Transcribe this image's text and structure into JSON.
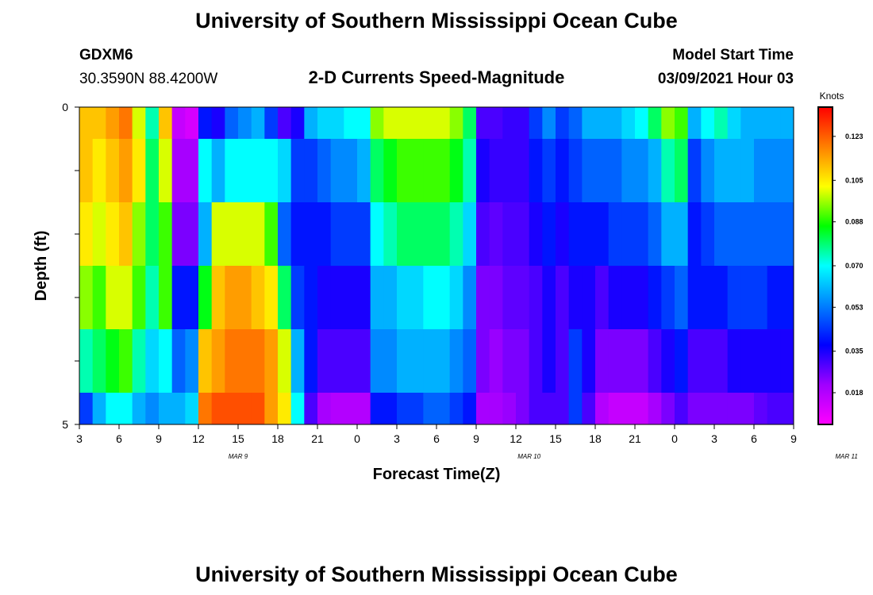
{
  "header": {
    "title": "University of Southern Mississippi Ocean Cube",
    "station": "GDXM6",
    "coords": "30.3590N 88.4200W",
    "subtitle": "2-D Currents Speed-Magnitude",
    "model_start_label": "Model Start Time",
    "model_start_value": "03/09/2021 Hour 03",
    "footer_title": "University of Southern Mississippi Ocean Cube"
  },
  "colors": {
    "scale": [
      "#ff00ff",
      "#a000ff",
      "#0000ff",
      "#0080ff",
      "#00ffff",
      "#00ff00",
      "#ffff00",
      "#ff8000",
      "#ff0000"
    ]
  },
  "chart_data": {
    "type": "heatmap",
    "xlabel": "Forecast Time(Z)",
    "ylabel": "Depth (ft)",
    "colorbar_label": "Knots",
    "colorbar_ticks": [
      "0.018",
      "0.035",
      "0.053",
      "0.070",
      "0.088",
      "0.105",
      "0.123"
    ],
    "value_range": [
      0.005,
      0.135
    ],
    "y_ticks": [
      "0",
      "5"
    ],
    "ylim": [
      0,
      5
    ],
    "x_ticks": [
      "3",
      "6",
      "9",
      "12",
      "15",
      "18",
      "21",
      "0",
      "3",
      "6",
      "9",
      "12",
      "15",
      "18",
      "21",
      "0",
      "3",
      "6",
      "9"
    ],
    "day_labels": [
      {
        "text": "MAR 9",
        "at_hour": 12
      },
      {
        "text": "MAR 10",
        "at_hour": 34
      },
      {
        "text": "MAR 11",
        "at_hour": 58
      }
    ],
    "hours_range": [
      3,
      57
    ],
    "depth_levels": [
      "0-0.5",
      "0.5-1.5",
      "1.5-2.5",
      "2.5-3.5",
      "3.5-4.5",
      "4.5-5"
    ],
    "profile": [
      {
        "hour": 3,
        "values": [
          0.11,
          0.11,
          0.105,
          0.095,
          0.075,
          0.045
        ]
      },
      {
        "hour": 4,
        "values": [
          0.11,
          0.105,
          0.1,
          0.09,
          0.08,
          0.06
        ]
      },
      {
        "hour": 5,
        "values": [
          0.115,
          0.11,
          0.105,
          0.1,
          0.085,
          0.07
        ]
      },
      {
        "hour": 6,
        "values": [
          0.12,
          0.115,
          0.11,
          0.1,
          0.09,
          0.07
        ]
      },
      {
        "hour": 7,
        "values": [
          0.1,
          0.105,
          0.095,
          0.09,
          0.075,
          0.06
        ]
      },
      {
        "hour": 8,
        "values": [
          0.075,
          0.08,
          0.08,
          0.075,
          0.065,
          0.055
        ]
      },
      {
        "hour": 9,
        "values": [
          0.11,
          0.1,
          0.09,
          0.09,
          0.07,
          0.06
        ]
      },
      {
        "hour": 10,
        "values": [
          0.015,
          0.02,
          0.025,
          0.04,
          0.05,
          0.06
        ]
      },
      {
        "hour": 11,
        "values": [
          0.012,
          0.02,
          0.025,
          0.04,
          0.055,
          0.065
        ]
      },
      {
        "hour": 12,
        "values": [
          0.04,
          0.07,
          0.06,
          0.085,
          0.11,
          0.12
        ]
      },
      {
        "hour": 13,
        "values": [
          0.035,
          0.06,
          0.1,
          0.11,
          0.115,
          0.125
        ]
      },
      {
        "hour": 14,
        "values": [
          0.05,
          0.07,
          0.1,
          0.115,
          0.12,
          0.125
        ]
      },
      {
        "hour": 15,
        "values": [
          0.055,
          0.07,
          0.1,
          0.115,
          0.12,
          0.125
        ]
      },
      {
        "hour": 16,
        "values": [
          0.06,
          0.07,
          0.1,
          0.11,
          0.12,
          0.125
        ]
      },
      {
        "hour": 17,
        "values": [
          0.045,
          0.07,
          0.09,
          0.105,
          0.115,
          0.115
        ]
      },
      {
        "hour": 18,
        "values": [
          0.03,
          0.065,
          0.05,
          0.08,
          0.1,
          0.105
        ]
      },
      {
        "hour": 19,
        "values": [
          0.035,
          0.045,
          0.04,
          0.045,
          0.06,
          0.07
        ]
      },
      {
        "hour": 20,
        "values": [
          0.06,
          0.045,
          0.04,
          0.04,
          0.04,
          0.03
        ]
      },
      {
        "hour": 21,
        "values": [
          0.065,
          0.05,
          0.04,
          0.035,
          0.03,
          0.02
        ]
      },
      {
        "hour": 22,
        "values": [
          0.065,
          0.055,
          0.045,
          0.035,
          0.03,
          0.018
        ]
      },
      {
        "hour": 23,
        "values": [
          0.07,
          0.055,
          0.045,
          0.035,
          0.03,
          0.018
        ]
      },
      {
        "hour": 24,
        "values": [
          0.07,
          0.06,
          0.045,
          0.035,
          0.03,
          0.018
        ]
      },
      {
        "hour": 25,
        "values": [
          0.095,
          0.08,
          0.07,
          0.06,
          0.055,
          0.04
        ]
      },
      {
        "hour": 26,
        "values": [
          0.1,
          0.085,
          0.075,
          0.06,
          0.055,
          0.04
        ]
      },
      {
        "hour": 27,
        "values": [
          0.1,
          0.09,
          0.08,
          0.065,
          0.06,
          0.045
        ]
      },
      {
        "hour": 28,
        "values": [
          0.1,
          0.09,
          0.08,
          0.065,
          0.06,
          0.045
        ]
      },
      {
        "hour": 29,
        "values": [
          0.1,
          0.09,
          0.08,
          0.07,
          0.06,
          0.05
        ]
      },
      {
        "hour": 30,
        "values": [
          0.1,
          0.09,
          0.08,
          0.07,
          0.06,
          0.05
        ]
      },
      {
        "hour": 31,
        "values": [
          0.095,
          0.085,
          0.075,
          0.065,
          0.055,
          0.045
        ]
      },
      {
        "hour": 32,
        "values": [
          0.08,
          0.075,
          0.065,
          0.055,
          0.05,
          0.04
        ]
      },
      {
        "hour": 33,
        "values": [
          0.03,
          0.035,
          0.03,
          0.025,
          0.025,
          0.02
        ]
      },
      {
        "hour": 34,
        "values": [
          0.03,
          0.032,
          0.028,
          0.025,
          0.022,
          0.02
        ]
      },
      {
        "hour": 35,
        "values": [
          0.032,
          0.032,
          0.03,
          0.028,
          0.025,
          0.022
        ]
      },
      {
        "hour": 36,
        "values": [
          0.032,
          0.032,
          0.03,
          0.028,
          0.025,
          0.025
        ]
      },
      {
        "hour": 37,
        "values": [
          0.045,
          0.04,
          0.035,
          0.03,
          0.03,
          0.03
        ]
      },
      {
        "hour": 38,
        "values": [
          0.055,
          0.045,
          0.04,
          0.035,
          0.035,
          0.03
        ]
      },
      {
        "hour": 39,
        "values": [
          0.045,
          0.04,
          0.035,
          0.03,
          0.03,
          0.03
        ]
      },
      {
        "hour": 40,
        "values": [
          0.05,
          0.045,
          0.04,
          0.035,
          0.045,
          0.045
        ]
      },
      {
        "hour": 41,
        "values": [
          0.06,
          0.05,
          0.04,
          0.035,
          0.035,
          0.03
        ]
      },
      {
        "hour": 42,
        "values": [
          0.06,
          0.05,
          0.04,
          0.03,
          0.025,
          0.018
        ]
      },
      {
        "hour": 43,
        "values": [
          0.06,
          0.05,
          0.045,
          0.035,
          0.025,
          0.015
        ]
      },
      {
        "hour": 44,
        "values": [
          0.065,
          0.055,
          0.045,
          0.035,
          0.025,
          0.015
        ]
      },
      {
        "hour": 45,
        "values": [
          0.07,
          0.055,
          0.045,
          0.035,
          0.025,
          0.015
        ]
      },
      {
        "hour": 46,
        "values": [
          0.08,
          0.06,
          0.05,
          0.04,
          0.03,
          0.02
        ]
      },
      {
        "hour": 47,
        "values": [
          0.095,
          0.075,
          0.06,
          0.045,
          0.035,
          0.025
        ]
      },
      {
        "hour": 48,
        "values": [
          0.09,
          0.08,
          0.06,
          0.05,
          0.04,
          0.03
        ]
      },
      {
        "hour": 49,
        "values": [
          0.06,
          0.045,
          0.04,
          0.04,
          0.03,
          0.025
        ]
      },
      {
        "hour": 50,
        "values": [
          0.07,
          0.055,
          0.045,
          0.04,
          0.03,
          0.025
        ]
      },
      {
        "hour": 51,
        "values": [
          0.075,
          0.06,
          0.05,
          0.04,
          0.03,
          0.025
        ]
      },
      {
        "hour": 52,
        "values": [
          0.065,
          0.06,
          0.05,
          0.045,
          0.035,
          0.025
        ]
      },
      {
        "hour": 53,
        "values": [
          0.06,
          0.06,
          0.05,
          0.045,
          0.035,
          0.025
        ]
      },
      {
        "hour": 54,
        "values": [
          0.06,
          0.055,
          0.05,
          0.045,
          0.035,
          0.028
        ]
      },
      {
        "hour": 55,
        "values": [
          0.06,
          0.055,
          0.05,
          0.04,
          0.035,
          0.03
        ]
      },
      {
        "hour": 56,
        "values": [
          0.06,
          0.055,
          0.05,
          0.04,
          0.035,
          0.03
        ]
      }
    ]
  }
}
